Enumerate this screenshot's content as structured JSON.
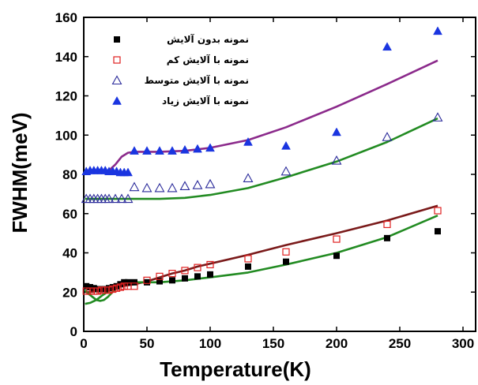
{
  "chart_data": {
    "type": "scatter",
    "xlabel": "Temperature(K)",
    "ylabel": "FWHM(meV)",
    "xlim": [
      0,
      310
    ],
    "ylim": [
      0,
      160
    ],
    "xticks": [
      0,
      50,
      100,
      150,
      200,
      250,
      300
    ],
    "yticks": [
      0,
      20,
      40,
      60,
      80,
      100,
      120,
      140,
      160
    ],
    "legend_position": "top-left",
    "grid": false,
    "series": [
      {
        "name": "نمونه بدون آلایش",
        "marker": "filled-square",
        "color": "#000000",
        "points": [
          [
            2,
            23
          ],
          [
            5,
            22.5
          ],
          [
            8,
            22
          ],
          [
            11,
            21.5
          ],
          [
            14,
            21.5
          ],
          [
            17,
            21.5
          ],
          [
            20,
            22
          ],
          [
            23,
            22.5
          ],
          [
            26,
            23
          ],
          [
            29,
            24
          ],
          [
            32,
            25
          ],
          [
            35,
            25
          ],
          [
            40,
            25
          ],
          [
            50,
            25
          ],
          [
            60,
            25.5
          ],
          [
            70,
            26
          ],
          [
            80,
            27
          ],
          [
            90,
            28
          ],
          [
            100,
            29
          ],
          [
            130,
            33
          ],
          [
            160,
            35.5
          ],
          [
            200,
            38.5
          ],
          [
            240,
            47.5
          ],
          [
            280,
            51
          ]
        ]
      },
      {
        "name": "نمونه با آلایش کم",
        "marker": "open-square",
        "color": "#e02020",
        "points": [
          [
            2,
            20.5
          ],
          [
            5,
            20.5
          ],
          [
            8,
            20.5
          ],
          [
            11,
            20.5
          ],
          [
            14,
            21
          ],
          [
            17,
            21
          ],
          [
            20,
            21
          ],
          [
            23,
            21.5
          ],
          [
            26,
            22
          ],
          [
            29,
            22.5
          ],
          [
            32,
            23
          ],
          [
            35,
            23
          ],
          [
            40,
            23
          ],
          [
            50,
            26
          ],
          [
            60,
            28
          ],
          [
            70,
            29.5
          ],
          [
            80,
            31
          ],
          [
            90,
            32.5
          ],
          [
            100,
            34
          ],
          [
            130,
            37
          ],
          [
            160,
            40.5
          ],
          [
            200,
            47
          ],
          [
            240,
            54.5
          ],
          [
            280,
            61.5
          ]
        ]
      },
      {
        "name": "نمونه با آلایش متوسط",
        "marker": "open-triangle",
        "color": "#2a2a9a",
        "points": [
          [
            2,
            67.5
          ],
          [
            5,
            67.5
          ],
          [
            8,
            67.5
          ],
          [
            11,
            67.5
          ],
          [
            14,
            67.5
          ],
          [
            17,
            67.5
          ],
          [
            20,
            67.5
          ],
          [
            25,
            67.5
          ],
          [
            30,
            67.5
          ],
          [
            35,
            67.5
          ],
          [
            40,
            73.5
          ],
          [
            50,
            73
          ],
          [
            60,
            73
          ],
          [
            70,
            73
          ],
          [
            80,
            74
          ],
          [
            90,
            74.5
          ],
          [
            100,
            75
          ],
          [
            130,
            78
          ],
          [
            160,
            81.5
          ],
          [
            200,
            87
          ],
          [
            240,
            99
          ],
          [
            280,
            109
          ]
        ]
      },
      {
        "name": "نمونه با آلایش زیاد",
        "marker": "filled-triangle",
        "color": "#1a35e0",
        "points": [
          [
            2,
            81.5
          ],
          [
            5,
            82
          ],
          [
            8,
            82
          ],
          [
            11,
            82
          ],
          [
            14,
            82
          ],
          [
            17,
            82
          ],
          [
            20,
            81.5
          ],
          [
            23,
            81.5
          ],
          [
            26,
            81.5
          ],
          [
            29,
            81
          ],
          [
            32,
            81
          ],
          [
            35,
            81
          ],
          [
            40,
            92
          ],
          [
            50,
            92
          ],
          [
            60,
            92
          ],
          [
            70,
            92
          ],
          [
            80,
            92.5
          ],
          [
            90,
            93
          ],
          [
            100,
            93.5
          ],
          [
            130,
            96.5
          ],
          [
            160,
            94.5
          ],
          [
            200,
            101.5
          ],
          [
            240,
            145
          ],
          [
            280,
            153
          ]
        ]
      }
    ],
    "fit_curves": [
      {
        "color": "#7a1a1a",
        "points": [
          [
            1,
            20
          ],
          [
            5,
            20
          ],
          [
            10,
            20.5
          ],
          [
            15,
            21
          ],
          [
            20,
            22
          ],
          [
            25,
            22.5
          ],
          [
            30,
            23
          ],
          [
            40,
            24
          ],
          [
            50,
            25.5
          ],
          [
            60,
            27.5
          ],
          [
            70,
            29.5
          ],
          [
            80,
            31
          ],
          [
            90,
            33
          ],
          [
            100,
            34.5
          ],
          [
            130,
            39
          ],
          [
            160,
            44
          ],
          [
            200,
            50
          ],
          [
            240,
            56.5
          ],
          [
            280,
            64
          ]
        ]
      },
      {
        "color": "#228b22",
        "points": [
          [
            1,
            21
          ],
          [
            4,
            19
          ],
          [
            8,
            17
          ],
          [
            10,
            16
          ],
          [
            13,
            15.5
          ],
          [
            16,
            16
          ],
          [
            19,
            17.5
          ],
          [
            22,
            19.5
          ],
          [
            25,
            21.5
          ],
          [
            30,
            24
          ],
          [
            40,
            25
          ],
          [
            60,
            25
          ],
          [
            80,
            26
          ],
          [
            100,
            27.5
          ],
          [
            130,
            30
          ],
          [
            160,
            34
          ],
          [
            200,
            40
          ],
          [
            240,
            48
          ],
          [
            280,
            59
          ]
        ]
      },
      {
        "color": "#228b22",
        "points": [
          [
            1,
            14
          ],
          [
            5,
            14.5
          ],
          [
            10,
            16
          ],
          [
            15,
            18.5
          ],
          [
            20,
            20.5
          ],
          [
            25,
            22.5
          ],
          [
            30,
            24
          ],
          [
            35,
            24.5
          ],
          [
            40,
            24.5
          ]
        ]
      },
      {
        "color": "#228b22",
        "points": [
          [
            1,
            67.5
          ],
          [
            20,
            67.5
          ],
          [
            40,
            67.5
          ],
          [
            60,
            67.5
          ],
          [
            80,
            68
          ],
          [
            100,
            69.5
          ],
          [
            130,
            73
          ],
          [
            160,
            78.5
          ],
          [
            200,
            86.5
          ],
          [
            240,
            96.5
          ],
          [
            280,
            108.5
          ]
        ]
      },
      {
        "color": "#8b2a8b",
        "points": [
          [
            1,
            81
          ],
          [
            10,
            81.5
          ],
          [
            20,
            82
          ],
          [
            25,
            85
          ],
          [
            30,
            89
          ],
          [
            35,
            91
          ],
          [
            40,
            91.5
          ],
          [
            60,
            91.5
          ],
          [
            80,
            92
          ],
          [
            100,
            93.5
          ],
          [
            130,
            97.5
          ],
          [
            160,
            104
          ],
          [
            200,
            114.5
          ],
          [
            240,
            126
          ],
          [
            280,
            138
          ]
        ]
      }
    ]
  }
}
